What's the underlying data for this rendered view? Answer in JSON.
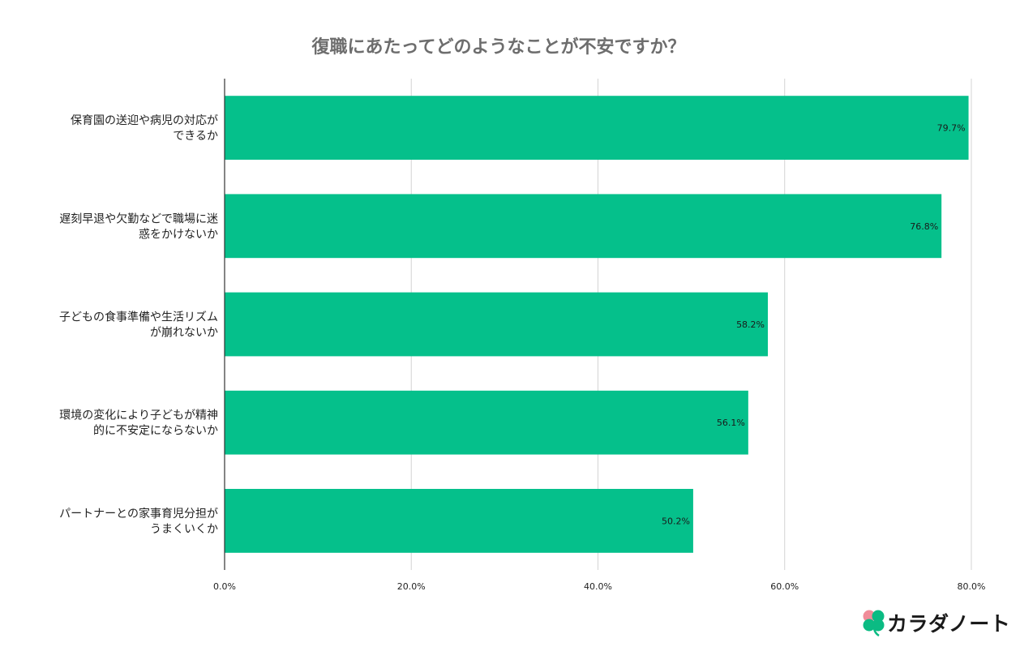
{
  "chart_data": {
    "type": "bar",
    "orientation": "horizontal",
    "title": "復職にあたってどのようなことが不安ですか？",
    "categories": [
      [
        "保育園の送迎や病児の対応が",
        "できるか"
      ],
      [
        "遅刻早退や欠勤などで職場に迷",
        "惑をかけないか"
      ],
      [
        "子どもの食事準備や生活リズム",
        "が崩れないか"
      ],
      [
        "環境の変化により子どもが精神",
        "的に不安定にならないか"
      ],
      [
        "パートナーとの家事育児分担が",
        "うまくいくか"
      ]
    ],
    "values": [
      79.7,
      76.8,
      58.2,
      56.1,
      50.2
    ],
    "data_labels": [
      "79.7%",
      "76.8%",
      "58.2%",
      "56.1%",
      "50.2%"
    ],
    "xlim": [
      0,
      80
    ],
    "x_ticks": [
      0,
      20,
      40,
      60,
      80
    ],
    "x_tick_labels": [
      "0.0%",
      "20.0%",
      "40.0%",
      "60.0%",
      "80.0%"
    ],
    "grid": true,
    "bar_color": "#05c08b",
    "grid_color": "#d4d4d4",
    "axis_color": "#333333"
  },
  "brand": {
    "logo_text": "カラダノート",
    "logo_icon": "clover-icon",
    "leaf_colors": [
      "#f08c99",
      "#0bbb83",
      "#0bbb83",
      "#0bbb83"
    ]
  }
}
